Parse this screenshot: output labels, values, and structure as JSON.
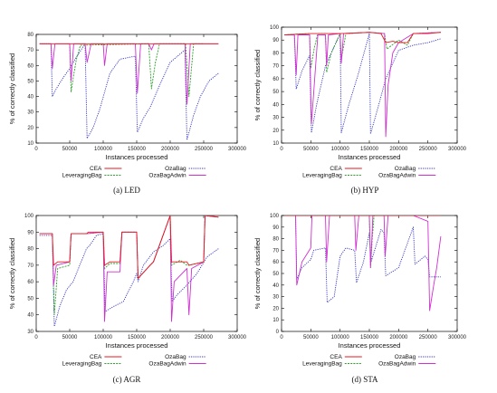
{
  "chart_data": [
    {
      "type": "line",
      "caption": "(a) LED",
      "xlabel": "Instances processed",
      "ylabel": "% of correctly classified",
      "xlim": [
        0,
        300000
      ],
      "ylim": [
        10,
        80
      ],
      "xticks": [
        0,
        50000,
        100000,
        150000,
        200000,
        250000,
        300000
      ],
      "yticks": [
        10,
        20,
        30,
        40,
        50,
        60,
        70,
        80
      ],
      "legend": [
        "CEA",
        "LeveragingBag",
        "OzaBag",
        "OzaBagAdwin"
      ],
      "series": [
        {
          "name": "CEA",
          "color": "#e41a1c",
          "dash": "",
          "x": [
            5000,
            30000,
            52000,
            60000,
            80000,
            100000,
            120000,
            150000,
            168000,
            180000,
            200000,
            215000,
            230000,
            250000,
            272000
          ],
          "y": [
            74,
            74,
            74,
            74,
            74,
            74,
            74,
            74,
            74,
            74,
            74,
            74,
            74,
            74,
            74
          ]
        },
        {
          "name": "LeveragingBag",
          "color": "#2ca02c",
          "dash": "2,1.2",
          "x": [
            50000,
            52000,
            56000,
            60000,
            66000,
            168000,
            172000,
            178000,
            184000,
            200000,
            223000,
            228000,
            235000,
            250000
          ],
          "y": [
            74,
            43,
            54,
            64,
            73,
            74,
            45,
            62,
            74,
            74,
            74,
            40,
            74,
            74
          ]
        },
        {
          "name": "OzaBag",
          "color": "#3030c8",
          "dash": "1.2,1.2",
          "x": [
            5000,
            22000,
            24000,
            30000,
            40000,
            50000,
            58000,
            73000,
            76000,
            85000,
            95000,
            110000,
            125000,
            148000,
            151000,
            160000,
            170000,
            185000,
            200000,
            222000,
            225000,
            235000,
            245000,
            258000,
            272000
          ],
          "y": [
            74,
            74,
            40,
            45,
            52,
            58,
            64,
            74,
            13,
            20,
            32,
            55,
            64,
            66,
            17,
            26,
            33,
            48,
            62,
            70,
            12,
            28,
            40,
            50,
            55
          ]
        },
        {
          "name": "OzaBagAdwin",
          "color": "#d030d0",
          "dash": "",
          "x": [
            5000,
            22000,
            24000,
            28000,
            50000,
            52000,
            56000,
            73000,
            76000,
            82000,
            100000,
            102000,
            106000,
            148000,
            151000,
            156000,
            168000,
            172000,
            176000,
            200000,
            222000,
            225000,
            230000,
            250000,
            272000
          ],
          "y": [
            74,
            74,
            58,
            74,
            74,
            50,
            74,
            74,
            62,
            74,
            74,
            60,
            74,
            74,
            42,
            74,
            74,
            70,
            74,
            74,
            74,
            35,
            74,
            74,
            74
          ]
        }
      ]
    },
    {
      "type": "line",
      "caption": "(b) HYP",
      "xlabel": "Instances processed",
      "ylabel": "% of correctly classified",
      "xlim": [
        0,
        300000
      ],
      "ylim": [
        10,
        100
      ],
      "xticks": [
        0,
        50000,
        100000,
        150000,
        200000,
        250000,
        300000
      ],
      "yticks": [
        10,
        20,
        30,
        40,
        50,
        60,
        70,
        80,
        90,
        100
      ],
      "legend": [
        "CEA",
        "LeveragingBag",
        "OzaBag",
        "OzaBagAdwin"
      ],
      "series": [
        {
          "name": "CEA",
          "color": "#e41a1c",
          "dash": "",
          "x": [
            5000,
            50000,
            100000,
            150000,
            170000,
            178000,
            190000,
            200000,
            215000,
            225000,
            250000,
            272000
          ],
          "y": [
            94,
            95,
            95,
            96,
            95,
            88,
            89,
            88,
            88,
            95,
            95,
            96
          ]
        },
        {
          "name": "LeveragingBag",
          "color": "#2ca02c",
          "dash": "2,1.2",
          "x": [
            5000,
            48000,
            50000,
            56000,
            62000,
            75000,
            77000,
            85000,
            100000,
            102000,
            110000,
            150000,
            176000,
            180000,
            200000,
            215000,
            225000,
            272000
          ],
          "y": [
            94,
            95,
            68,
            84,
            95,
            95,
            65,
            80,
            95,
            75,
            95,
            96,
            95,
            83,
            90,
            86,
            95,
            96
          ]
        },
        {
          "name": "OzaBag",
          "color": "#3030c8",
          "dash": "1.2,1.2",
          "x": [
            5000,
            22000,
            25000,
            35000,
            48000,
            51000,
            60000,
            75000,
            100000,
            102000,
            115000,
            130000,
            150000,
            152000,
            165000,
            178000,
            200000,
            225000,
            250000,
            272000
          ],
          "y": [
            94,
            94,
            52,
            66,
            78,
            18,
            40,
            70,
            95,
            18,
            40,
            62,
            95,
            17,
            38,
            60,
            82,
            86,
            88,
            91
          ]
        },
        {
          "name": "OzaBagAdwin",
          "color": "#d030d0",
          "dash": "",
          "x": [
            5000,
            22000,
            25000,
            28000,
            48000,
            51000,
            55000,
            62000,
            75000,
            77000,
            80000,
            100000,
            102000,
            106000,
            150000,
            176000,
            178000,
            182000,
            190000,
            200000,
            225000,
            272000
          ],
          "y": [
            94,
            94,
            63,
            94,
            94,
            25,
            50,
            94,
            94,
            70,
            94,
            95,
            72,
            95,
            96,
            95,
            15,
            55,
            80,
            88,
            95,
            96
          ]
        }
      ]
    },
    {
      "type": "line",
      "caption": "(c) AGR",
      "xlabel": "Instances processed",
      "ylabel": "% of correctly classified",
      "xlim": [
        0,
        300000
      ],
      "ylim": [
        30,
        100
      ],
      "xticks": [
        0,
        50000,
        100000,
        150000,
        200000,
        250000,
        300000
      ],
      "yticks": [
        30,
        40,
        50,
        60,
        70,
        80,
        90,
        100
      ],
      "legend": [
        "CEA",
        "LeveragingBag",
        "OzaBag",
        "OzaBagAdwin"
      ],
      "series": [
        {
          "name": "CEA",
          "color": "#e41a1c",
          "dash": "",
          "x": [
            5000,
            24000,
            26000,
            32000,
            50000,
            52000,
            75000,
            78000,
            100000,
            102000,
            110000,
            125000,
            128000,
            150000,
            152000,
            170000,
            175000,
            200000,
            202000,
            225000,
            228000,
            250000,
            252000,
            272000
          ],
          "y": [
            89,
            89,
            70,
            72,
            72,
            89,
            89,
            90,
            90,
            70,
            72,
            72,
            90,
            90,
            62,
            70,
            72,
            100,
            72,
            72,
            70,
            72,
            100,
            99
          ]
        },
        {
          "name": "LeveragingBag",
          "color": "#2ca02c",
          "dash": "2,1.2",
          "x": [
            5000,
            24000,
            27000,
            32000,
            50000,
            52000,
            75000,
            100000,
            102000,
            110000,
            125000,
            128000,
            150000,
            152000,
            170000,
            175000,
            200000,
            202000,
            215000,
            225000,
            228000,
            250000,
            252000,
            272000
          ],
          "y": [
            89,
            89,
            40,
            68,
            70,
            89,
            89,
            90,
            68,
            71,
            71,
            90,
            90,
            62,
            70,
            72,
            100,
            70,
            73,
            70,
            70,
            72,
            100,
            99
          ]
        },
        {
          "name": "OzaBag",
          "color": "#3030c8",
          "dash": "1.2,1.2",
          "x": [
            5000,
            24000,
            27000,
            35000,
            45000,
            55000,
            65000,
            75000,
            80000,
            90000,
            100000,
            103000,
            115000,
            130000,
            145000,
            150000,
            152000,
            160000,
            175000,
            190000,
            200000,
            203000,
            210000,
            225000,
            240000,
            255000,
            272000
          ],
          "y": [
            88,
            88,
            33,
            45,
            55,
            60,
            70,
            80,
            82,
            88,
            89,
            42,
            45,
            48,
            60,
            65,
            60,
            70,
            78,
            82,
            86,
            48,
            52,
            58,
            65,
            75,
            80
          ]
        },
        {
          "name": "OzaBagAdwin",
          "color": "#d030d0",
          "dash": "",
          "x": [
            5000,
            24000,
            26000,
            30000,
            50000,
            52000,
            75000,
            100000,
            102000,
            106000,
            125000,
            128000,
            150000,
            152000,
            170000,
            175000,
            200000,
            202000,
            206000,
            225000,
            228000,
            232000,
            250000,
            252000,
            272000
          ],
          "y": [
            89,
            89,
            58,
            70,
            72,
            89,
            89,
            90,
            36,
            66,
            66,
            90,
            90,
            62,
            70,
            72,
            100,
            36,
            60,
            68,
            40,
            68,
            72,
            100,
            99
          ]
        }
      ]
    },
    {
      "type": "line",
      "caption": "(d) STA",
      "xlabel": "Instances processed",
      "ylabel": "% of correctly classified",
      "xlim": [
        0,
        300000
      ],
      "ylim": [
        0,
        100
      ],
      "xticks": [
        0,
        50000,
        100000,
        150000,
        200000,
        250000,
        300000
      ],
      "yticks": [
        0,
        10,
        20,
        30,
        40,
        50,
        60,
        70,
        80,
        90,
        100
      ],
      "legend": [
        "CEA",
        "LeveragingBag",
        "OzaBag",
        "OzaBagAdwin"
      ],
      "series": [
        {
          "name": "CEA",
          "color": "#e41a1c",
          "dash": "",
          "x": [
            5000,
            24000,
            50000,
            55000,
            75000,
            100000,
            125000,
            150000,
            175000,
            200000,
            225000,
            250000,
            272000
          ],
          "y": [
            100,
            100,
            100,
            100,
            100,
            100,
            100,
            100,
            100,
            100,
            100,
            100,
            100
          ]
        },
        {
          "name": "LeveragingBag",
          "color": "#2ca02c",
          "dash": "2,1.2",
          "x": [
            5000,
            150000,
            152000,
            155000,
            158000,
            272000
          ],
          "y": [
            100,
            100,
            55,
            80,
            100,
            100
          ]
        },
        {
          "name": "OzaBag",
          "color": "#3030c8",
          "dash": "1.2,1.2",
          "x": [
            5000,
            24000,
            26000,
            35000,
            50000,
            55000,
            75000,
            78000,
            90000,
            100000,
            110000,
            125000,
            128000,
            140000,
            150000,
            153000,
            170000,
            175000,
            178000,
            200000,
            225000,
            228000,
            245000,
            250000,
            253000,
            272000
          ],
          "y": [
            100,
            100,
            45,
            55,
            62,
            70,
            72,
            25,
            30,
            65,
            72,
            70,
            42,
            60,
            85,
            60,
            88,
            85,
            48,
            55,
            90,
            58,
            65,
            62,
            47,
            47
          ]
        },
        {
          "name": "OzaBagAdwin",
          "color": "#d030d0",
          "dash": "",
          "x": [
            5000,
            24000,
            26000,
            35000,
            50000,
            52000,
            75000,
            77000,
            82000,
            100000,
            125000,
            127000,
            132000,
            150000,
            152000,
            156000,
            175000,
            177000,
            182000,
            200000,
            225000,
            250000,
            253000,
            260000,
            265000,
            272000
          ],
          "y": [
            100,
            100,
            40,
            60,
            72,
            100,
            100,
            60,
            100,
            100,
            100,
            70,
            100,
            100,
            55,
            100,
            100,
            65,
            100,
            100,
            100,
            95,
            18,
            40,
            55,
            82
          ]
        }
      ]
    }
  ]
}
